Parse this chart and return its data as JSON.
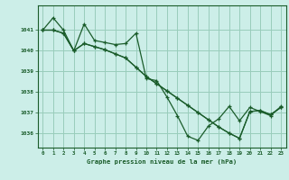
{
  "background_color": "#cceee8",
  "grid_color": "#99ccbb",
  "line_color": "#1a5c2a",
  "xlabel": "Graphe pression niveau de la mer (hPa)",
  "xlim": [
    -0.5,
    23.5
  ],
  "ylim": [
    1035.3,
    1042.2
  ],
  "yticks": [
    1036,
    1037,
    1038,
    1039,
    1040,
    1041
  ],
  "xticks": [
    0,
    1,
    2,
    3,
    4,
    5,
    6,
    7,
    8,
    9,
    10,
    11,
    12,
    13,
    14,
    15,
    16,
    17,
    18,
    19,
    20,
    21,
    22,
    23
  ],
  "series1": [
    1041.0,
    1041.6,
    1041.0,
    1040.0,
    1041.3,
    1040.5,
    1040.4,
    1040.3,
    1040.35,
    1040.85,
    1038.65,
    1038.55,
    1037.75,
    1036.85,
    1035.85,
    1035.65,
    1036.35,
    1036.7,
    1037.3,
    1036.6,
    1037.25,
    1037.05,
    1036.85,
    1037.3
  ],
  "series2": [
    1041.0,
    1041.0,
    1040.85,
    1040.0,
    1040.35,
    1040.2,
    1040.05,
    1039.85,
    1039.65,
    1039.2,
    1038.75,
    1038.4,
    1038.05,
    1037.7,
    1037.35,
    1037.0,
    1036.65,
    1036.3,
    1036.0,
    1035.75,
    1037.05,
    1037.1,
    1036.9,
    1037.25
  ],
  "series3": [
    1041.0,
    1041.0,
    1040.85,
    1040.0,
    1040.35,
    1040.2,
    1040.05,
    1039.85,
    1039.65,
    1039.2,
    1038.75,
    1038.4,
    1038.05,
    1037.7,
    1037.35,
    1037.0,
    1036.65,
    1036.3,
    1036.0,
    1035.75,
    1037.05,
    1037.1,
    1036.9,
    1037.25
  ]
}
